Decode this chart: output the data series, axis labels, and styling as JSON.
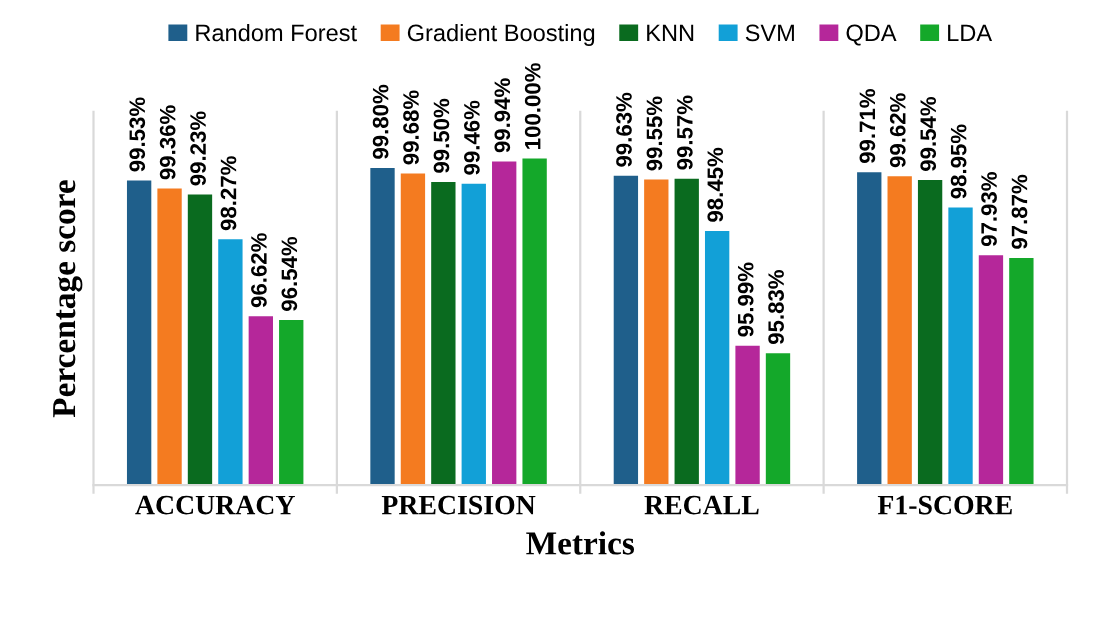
{
  "chart_data": {
    "type": "bar",
    "xlabel": "Metrics",
    "ylabel": "Percentage score",
    "categories": [
      "ACCURACY",
      "PRECISION",
      "RECALL",
      "F1-SCORE"
    ],
    "ylim": [
      93,
      101
    ],
    "tick_labels": "x",
    "legend": "top",
    "grid": false,
    "series": [
      {
        "name": "Random Forest",
        "color": "#1f5f8b",
        "values": [
          99.53,
          99.8,
          99.63,
          99.71
        ],
        "value_labels": [
          "99.53%",
          "99.80%",
          "99.63%",
          "99.71%"
        ]
      },
      {
        "name": "Gradient Boosting",
        "color": "#f47b20",
        "values": [
          99.36,
          99.68,
          99.55,
          99.62
        ],
        "value_labels": [
          "99.36%",
          "99.68%",
          "99.55%",
          "99.62%"
        ]
      },
      {
        "name": "KNN",
        "color": "#0a6b1f",
        "values": [
          99.23,
          99.5,
          99.57,
          99.54
        ],
        "value_labels": [
          "99.23%",
          "99.50%",
          "99.57%",
          "99.54%"
        ]
      },
      {
        "name": "SVM",
        "color": "#12a0d7",
        "values": [
          98.27,
          99.46,
          98.45,
          98.95
        ],
        "value_labels": [
          "98.27%",
          "99.46%",
          "98.45%",
          "98.95%"
        ]
      },
      {
        "name": "QDA",
        "color": "#b5279a",
        "values": [
          96.62,
          99.94,
          95.99,
          97.93
        ],
        "value_labels": [
          "96.62%",
          "99.94%",
          "95.99%",
          "97.93%"
        ]
      },
      {
        "name": "LDA",
        "color": "#14a82a",
        "values": [
          96.54,
          100.0,
          95.83,
          97.87
        ],
        "value_labels": [
          "96.54%",
          "100.00%",
          "95.83%",
          "97.87%"
        ]
      }
    ]
  }
}
